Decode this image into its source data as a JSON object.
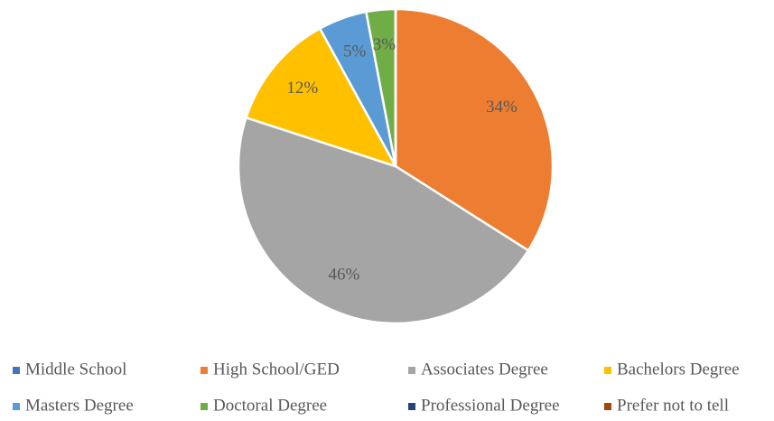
{
  "chart_data": {
    "type": "pie",
    "categories": [
      "Middle School",
      "High School/GED",
      "Associates Degree",
      "Bachelors Degree",
      "Masters Degree",
      "Doctoral Degree",
      "Professional Degree",
      "Prefer not to tell"
    ],
    "values": [
      0,
      34,
      46,
      12,
      5,
      3,
      0,
      0
    ],
    "value_labels": [
      null,
      "34%",
      "46%",
      "12%",
      "5%",
      "3%",
      null,
      null
    ],
    "colors": [
      "#4472c4",
      "#ed7d31",
      "#a5a5a5",
      "#ffc000",
      "#5b9bd5",
      "#70ad47",
      "#264478",
      "#9e480e"
    ],
    "legend": "bottom"
  }
}
